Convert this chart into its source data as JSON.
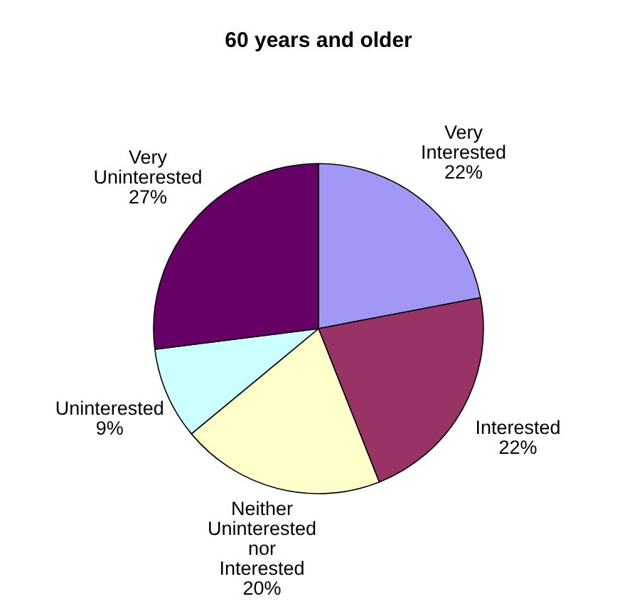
{
  "chart_data": {
    "type": "pie",
    "title": "60 years and older",
    "categories": [
      "Very Interested",
      "Interested",
      "Neither Uninterested nor Interested",
      "Uninterested",
      "Very Uninterested"
    ],
    "values": [
      22,
      22,
      20,
      9,
      27
    ],
    "colors": [
      "#a098f4",
      "#993366",
      "#ffffcc",
      "#ccffff",
      "#660066"
    ],
    "value_labels": [
      "22%",
      "22%",
      "20%",
      "9%",
      "27%"
    ]
  }
}
